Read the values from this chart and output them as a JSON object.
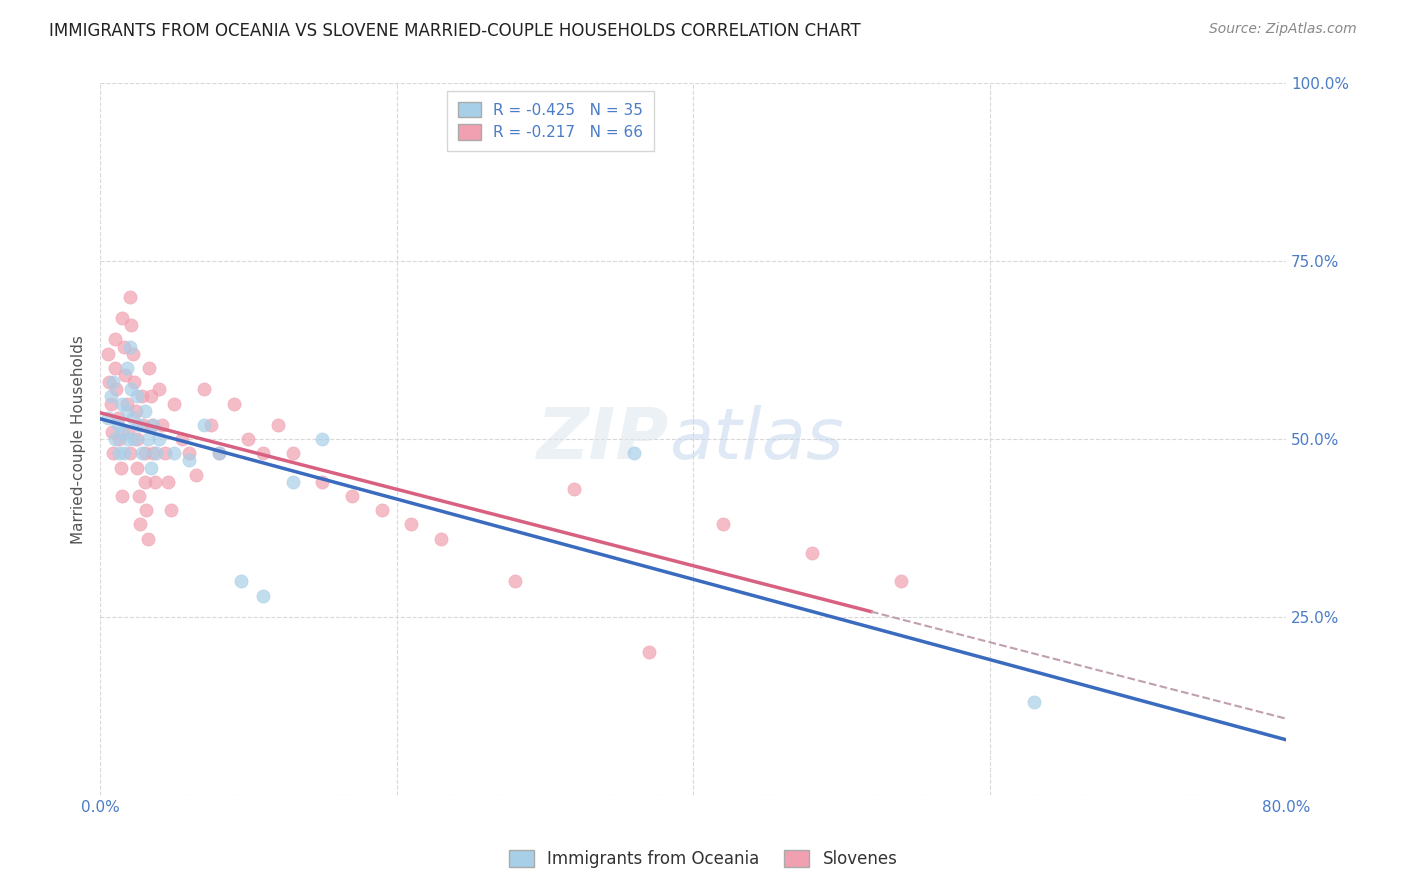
{
  "title": "IMMIGRANTS FROM OCEANIA VS SLOVENE MARRIED-COUPLE HOUSEHOLDS CORRELATION CHART",
  "source": "Source: ZipAtlas.com",
  "ylabel": "Married-couple Households",
  "oceania_color": "#a8cfe8",
  "slovene_color": "#f0a0b0",
  "oceania_line_color": "#3a6bbf",
  "slovene_line_color": "#d86080",
  "dash_color": "#c0a0b0",
  "background_color": "#ffffff",
  "grid_color": "#d8d8d8",
  "tick_color": "#4a7cc7",
  "title_color": "#222222",
  "source_color": "#888888",
  "ylabel_color": "#555555",
  "oceania_scatter": [
    [
      0.005,
      0.53
    ],
    [
      0.007,
      0.56
    ],
    [
      0.009,
      0.58
    ],
    [
      0.01,
      0.5
    ],
    [
      0.012,
      0.52
    ],
    [
      0.013,
      0.48
    ],
    [
      0.015,
      0.55
    ],
    [
      0.015,
      0.51
    ],
    [
      0.016,
      0.48
    ],
    [
      0.018,
      0.6
    ],
    [
      0.018,
      0.54
    ],
    [
      0.019,
      0.5
    ],
    [
      0.02,
      0.63
    ],
    [
      0.021,
      0.57
    ],
    [
      0.022,
      0.53
    ],
    [
      0.023,
      0.5
    ],
    [
      0.025,
      0.56
    ],
    [
      0.026,
      0.52
    ],
    [
      0.028,
      0.48
    ],
    [
      0.03,
      0.54
    ],
    [
      0.032,
      0.5
    ],
    [
      0.034,
      0.46
    ],
    [
      0.036,
      0.52
    ],
    [
      0.038,
      0.48
    ],
    [
      0.04,
      0.5
    ],
    [
      0.05,
      0.48
    ],
    [
      0.06,
      0.47
    ],
    [
      0.07,
      0.52
    ],
    [
      0.08,
      0.48
    ],
    [
      0.095,
      0.3
    ],
    [
      0.11,
      0.28
    ],
    [
      0.13,
      0.44
    ],
    [
      0.15,
      0.5
    ],
    [
      0.36,
      0.48
    ],
    [
      0.63,
      0.13
    ]
  ],
  "slovene_scatter": [
    [
      0.005,
      0.62
    ],
    [
      0.006,
      0.58
    ],
    [
      0.007,
      0.55
    ],
    [
      0.008,
      0.51
    ],
    [
      0.009,
      0.48
    ],
    [
      0.01,
      0.64
    ],
    [
      0.01,
      0.6
    ],
    [
      0.011,
      0.57
    ],
    [
      0.012,
      0.53
    ],
    [
      0.013,
      0.5
    ],
    [
      0.014,
      0.46
    ],
    [
      0.015,
      0.42
    ],
    [
      0.015,
      0.67
    ],
    [
      0.016,
      0.63
    ],
    [
      0.017,
      0.59
    ],
    [
      0.018,
      0.55
    ],
    [
      0.019,
      0.51
    ],
    [
      0.02,
      0.48
    ],
    [
      0.02,
      0.7
    ],
    [
      0.021,
      0.66
    ],
    [
      0.022,
      0.62
    ],
    [
      0.023,
      0.58
    ],
    [
      0.024,
      0.54
    ],
    [
      0.025,
      0.5
    ],
    [
      0.025,
      0.46
    ],
    [
      0.026,
      0.42
    ],
    [
      0.027,
      0.38
    ],
    [
      0.028,
      0.56
    ],
    [
      0.029,
      0.52
    ],
    [
      0.03,
      0.48
    ],
    [
      0.03,
      0.44
    ],
    [
      0.031,
      0.4
    ],
    [
      0.032,
      0.36
    ],
    [
      0.033,
      0.6
    ],
    [
      0.034,
      0.56
    ],
    [
      0.035,
      0.52
    ],
    [
      0.036,
      0.48
    ],
    [
      0.037,
      0.44
    ],
    [
      0.04,
      0.57
    ],
    [
      0.042,
      0.52
    ],
    [
      0.044,
      0.48
    ],
    [
      0.046,
      0.44
    ],
    [
      0.048,
      0.4
    ],
    [
      0.05,
      0.55
    ],
    [
      0.055,
      0.5
    ],
    [
      0.06,
      0.48
    ],
    [
      0.065,
      0.45
    ],
    [
      0.07,
      0.57
    ],
    [
      0.075,
      0.52
    ],
    [
      0.08,
      0.48
    ],
    [
      0.09,
      0.55
    ],
    [
      0.1,
      0.5
    ],
    [
      0.11,
      0.48
    ],
    [
      0.12,
      0.52
    ],
    [
      0.13,
      0.48
    ],
    [
      0.15,
      0.44
    ],
    [
      0.17,
      0.42
    ],
    [
      0.19,
      0.4
    ],
    [
      0.21,
      0.38
    ],
    [
      0.23,
      0.36
    ],
    [
      0.28,
      0.3
    ],
    [
      0.32,
      0.43
    ],
    [
      0.37,
      0.2
    ],
    [
      0.42,
      0.38
    ],
    [
      0.48,
      0.34
    ],
    [
      0.54,
      0.3
    ]
  ],
  "x_min": 0.0,
  "x_max": 0.8,
  "y_min": 0.0,
  "y_max": 1.0,
  "x_ticks": [
    0.0,
    0.2,
    0.4,
    0.6,
    0.8
  ],
  "y_ticks": [
    0.0,
    0.25,
    0.5,
    0.75,
    1.0
  ],
  "x_tick_labels": [
    "0.0%",
    "",
    "",
    "",
    "80.0%"
  ],
  "y_tick_labels": [
    "",
    "25.0%",
    "50.0%",
    "75.0%",
    "100.0%"
  ],
  "legend_r_oceania": "R = -0.425   N = 35",
  "legend_r_slovene": "R = -0.217   N = 66",
  "legend_bottom_oceania": "Immigrants from Oceania",
  "legend_bottom_slovene": "Slovenes",
  "watermark_zip": "ZIP",
  "watermark_atlas": "atlas",
  "slovene_line_xend": 0.52
}
